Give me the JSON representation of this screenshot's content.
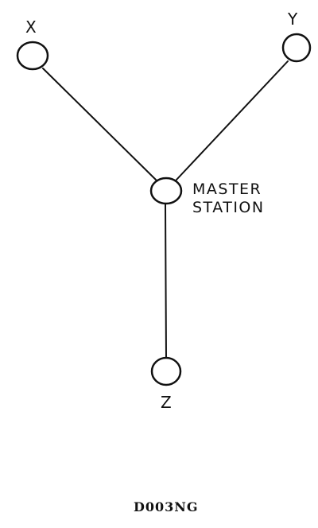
{
  "diagram": {
    "nodes": [
      {
        "id": "x",
        "label": "X"
      },
      {
        "id": "y",
        "label": "Y"
      },
      {
        "id": "master",
        "label_line1": "MASTER",
        "label_line2": "STATION"
      },
      {
        "id": "z",
        "label": "Z"
      }
    ],
    "edges": [
      {
        "from": "x",
        "to": "master"
      },
      {
        "from": "y",
        "to": "master"
      },
      {
        "from": "z",
        "to": "master"
      }
    ],
    "code": "D003NG",
    "colors": {
      "stroke": "#111111",
      "background": "#ffffff"
    }
  }
}
